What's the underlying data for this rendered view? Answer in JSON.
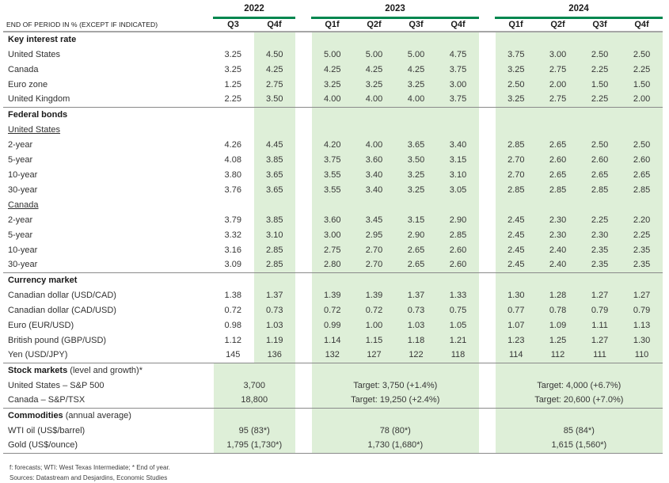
{
  "table": {
    "corner_label": "END OF PERIOD IN % (EXCEPT IF INDICATED)",
    "year_groups": [
      {
        "year": "2022",
        "quarters": [
          "Q3",
          "Q4f"
        ]
      },
      {
        "year": "2023",
        "quarters": [
          "Q1f",
          "Q2f",
          "Q3f",
          "Q4f"
        ]
      },
      {
        "year": "2024",
        "quarters": [
          "Q1f",
          "Q2f",
          "Q3f",
          "Q4f"
        ]
      }
    ],
    "sections": [
      {
        "title": "Key interest rate",
        "title_note": "",
        "type": "quarterly",
        "rows": [
          {
            "label": "United States",
            "values": [
              "3.25",
              "4.50",
              "5.00",
              "5.00",
              "5.00",
              "4.75",
              "3.75",
              "3.00",
              "2.50",
              "2.50"
            ]
          },
          {
            "label": "Canada",
            "values": [
              "3.25",
              "4.25",
              "4.25",
              "4.25",
              "4.25",
              "3.75",
              "3.25",
              "2.75",
              "2.25",
              "2.25"
            ]
          },
          {
            "label": "Euro zone",
            "values": [
              "1.25",
              "2.75",
              "3.25",
              "3.25",
              "3.25",
              "3.00",
              "2.50",
              "2.00",
              "1.50",
              "1.50"
            ]
          },
          {
            "label": "United Kingdom",
            "values": [
              "2.25",
              "3.50",
              "4.00",
              "4.00",
              "4.00",
              "3.75",
              "3.25",
              "2.75",
              "2.25",
              "2.00"
            ]
          }
        ]
      },
      {
        "title": "Federal bonds",
        "title_note": "",
        "type": "quarterly",
        "rows": [
          {
            "label": "United States",
            "subheader": true
          },
          {
            "label": "2-year",
            "values": [
              "4.26",
              "4.45",
              "4.20",
              "4.00",
              "3.65",
              "3.40",
              "2.85",
              "2.65",
              "2.50",
              "2.50"
            ]
          },
          {
            "label": "5-year",
            "values": [
              "4.08",
              "3.85",
              "3.75",
              "3.60",
              "3.50",
              "3.15",
              "2.70",
              "2.60",
              "2.60",
              "2.60"
            ]
          },
          {
            "label": "10-year",
            "values": [
              "3.80",
              "3.65",
              "3.55",
              "3.40",
              "3.25",
              "3.10",
              "2.70",
              "2.65",
              "2.65",
              "2.65"
            ]
          },
          {
            "label": "30-year",
            "values": [
              "3.76",
              "3.65",
              "3.55",
              "3.40",
              "3.25",
              "3.05",
              "2.85",
              "2.85",
              "2.85",
              "2.85"
            ]
          },
          {
            "label": "Canada",
            "subheader": true
          },
          {
            "label": "2-year",
            "values": [
              "3.79",
              "3.85",
              "3.60",
              "3.45",
              "3.15",
              "2.90",
              "2.45",
              "2.30",
              "2.25",
              "2.20"
            ]
          },
          {
            "label": "5-year",
            "values": [
              "3.32",
              "3.10",
              "3.00",
              "2.95",
              "2.90",
              "2.85",
              "2.45",
              "2.30",
              "2.30",
              "2.25"
            ]
          },
          {
            "label": "10-year",
            "values": [
              "3.16",
              "2.85",
              "2.75",
              "2.70",
              "2.65",
              "2.60",
              "2.45",
              "2.40",
              "2.35",
              "2.35"
            ]
          },
          {
            "label": "30-year",
            "values": [
              "3.09",
              "2.85",
              "2.80",
              "2.70",
              "2.65",
              "2.60",
              "2.45",
              "2.40",
              "2.35",
              "2.35"
            ]
          }
        ]
      },
      {
        "title": "Currency market",
        "title_note": "",
        "type": "quarterly",
        "rows": [
          {
            "label": "Canadian dollar (USD/CAD)",
            "values": [
              "1.38",
              "1.37",
              "1.39",
              "1.39",
              "1.37",
              "1.33",
              "1.30",
              "1.28",
              "1.27",
              "1.27"
            ]
          },
          {
            "label": "Canadian dollar (CAD/USD)",
            "values": [
              "0.72",
              "0.73",
              "0.72",
              "0.72",
              "0.73",
              "0.75",
              "0.77",
              "0.78",
              "0.79",
              "0.79"
            ]
          },
          {
            "label": "Euro (EUR/USD)",
            "values": [
              "0.98",
              "1.03",
              "0.99",
              "1.00",
              "1.03",
              "1.05",
              "1.07",
              "1.09",
              "1.11",
              "1.13"
            ]
          },
          {
            "label": "British pound (GBP/USD)",
            "values": [
              "1.12",
              "1.19",
              "1.14",
              "1.15",
              "1.18",
              "1.21",
              "1.23",
              "1.25",
              "1.27",
              "1.30"
            ]
          },
          {
            "label": "Yen (USD/JPY)",
            "values": [
              "145",
              "136",
              "132",
              "127",
              "122",
              "118",
              "114",
              "112",
              "111",
              "110"
            ]
          }
        ]
      },
      {
        "title": "Stock markets",
        "title_note": "(level and growth)*",
        "type": "annual",
        "rows": [
          {
            "label": "United States – S&P 500",
            "values": [
              "3,700",
              "Target: 3,750 (+1.4%)",
              "Target: 4,000 (+6.7%)"
            ]
          },
          {
            "label": "Canada – S&P/TSX",
            "values": [
              "18,800",
              "Target: 19,250 (+2.4%)",
              "Target: 20,600 (+7.0%)"
            ]
          }
        ]
      },
      {
        "title": "Commodities",
        "title_note": "(annual average)",
        "type": "annual",
        "rows": [
          {
            "label": "WTI oil (US$/barrel)",
            "values": [
              "95 (83*)",
              "78 (80*)",
              "85 (84*)"
            ]
          },
          {
            "label": "Gold (US$/ounce)",
            "values": [
              "1,795 (1,730*)",
              "1,730 (1,680*)",
              "1,615 (1,560*)"
            ]
          }
        ]
      }
    ]
  },
  "footnotes": [
    "f: forecasts; WTI: West Texas Intermediate; * End of year.",
    "Sources: Datastream and Desjardins, Economic Studies"
  ],
  "colors": {
    "accent_green": "#00864F",
    "forecast_highlight": "#DEEFD8",
    "header_rule_gray": "#A6A6A6",
    "section_rule_gray": "#8A8A8A"
  }
}
